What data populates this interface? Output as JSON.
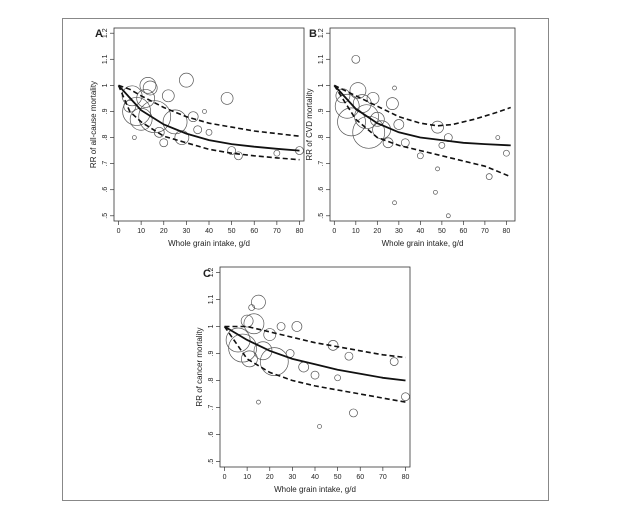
{
  "chart_data": [
    {
      "type": "scatter",
      "panel": "A",
      "xlabel": "Whole grain intake, g/d",
      "ylabel": "RR of all-cause mortality",
      "xlim": [
        0,
        80
      ],
      "ylim": [
        0.5,
        1.2
      ],
      "xticks": [
        0,
        10,
        20,
        30,
        40,
        50,
        60,
        70,
        80
      ],
      "yticks": [
        0.5,
        0.6,
        0.7,
        0.8,
        0.9,
        1.0,
        1.1,
        1.2
      ],
      "ytick_labels": [
        ".5",
        ".6",
        ".7",
        ".8",
        ".9",
        "1",
        "1.1",
        "1.2"
      ],
      "curve": {
        "x": [
          0,
          10,
          20,
          30,
          40,
          50,
          60,
          70,
          80
        ],
        "y": [
          1.0,
          0.905,
          0.85,
          0.815,
          0.79,
          0.775,
          0.765,
          0.757,
          0.75
        ]
      },
      "ci_upper": {
        "x": [
          0,
          5,
          10,
          20,
          30,
          40,
          50,
          60,
          70,
          80
        ],
        "y": [
          1.0,
          0.985,
          0.96,
          0.915,
          0.88,
          0.855,
          0.84,
          0.825,
          0.815,
          0.805
        ]
      },
      "ci_lower": {
        "x": [
          0,
          5,
          10,
          20,
          30,
          40,
          50,
          60,
          70,
          80
        ],
        "y": [
          1.0,
          0.9,
          0.86,
          0.805,
          0.78,
          0.755,
          0.74,
          0.73,
          0.722,
          0.715
        ]
      },
      "points": [
        {
          "x": 5,
          "y": 0.92,
          "r": 6
        },
        {
          "x": 6,
          "y": 0.96,
          "r": 10
        },
        {
          "x": 8,
          "y": 0.9,
          "r": 14
        },
        {
          "x": 10,
          "y": 0.87,
          "r": 11
        },
        {
          "x": 12,
          "y": 0.95,
          "r": 9
        },
        {
          "x": 13,
          "y": 1.0,
          "r": 8
        },
        {
          "x": 14,
          "y": 0.99,
          "r": 7
        },
        {
          "x": 16,
          "y": 0.88,
          "r": 16
        },
        {
          "x": 18,
          "y": 0.82,
          "r": 5
        },
        {
          "x": 20,
          "y": 0.78,
          "r": 4
        },
        {
          "x": 22,
          "y": 0.96,
          "r": 6
        },
        {
          "x": 25,
          "y": 0.86,
          "r": 12
        },
        {
          "x": 28,
          "y": 0.8,
          "r": 7
        },
        {
          "x": 30,
          "y": 1.02,
          "r": 7
        },
        {
          "x": 33,
          "y": 0.88,
          "r": 5
        },
        {
          "x": 35,
          "y": 0.83,
          "r": 4
        },
        {
          "x": 40,
          "y": 0.82,
          "r": 3
        },
        {
          "x": 48,
          "y": 0.95,
          "r": 6
        },
        {
          "x": 50,
          "y": 0.75,
          "r": 4
        },
        {
          "x": 53,
          "y": 0.73,
          "r": 4
        },
        {
          "x": 70,
          "y": 0.74,
          "r": 3
        },
        {
          "x": 80,
          "y": 0.75,
          "r": 4
        },
        {
          "x": 7,
          "y": 0.8,
          "r": 2
        },
        {
          "x": 38,
          "y": 0.9,
          "r": 2
        }
      ]
    },
    {
      "type": "scatter",
      "panel": "B",
      "xlabel": "Whole grain intake, g/d",
      "ylabel": "RR of CVD mortality",
      "xlim": [
        0,
        80
      ],
      "ylim": [
        0.5,
        1.2
      ],
      "xticks": [
        0,
        10,
        20,
        30,
        40,
        50,
        60,
        70,
        80
      ],
      "yticks": [
        0.5,
        0.6,
        0.7,
        0.8,
        0.9,
        1.0,
        1.1,
        1.2
      ],
      "ytick_labels": [
        ".5",
        ".6",
        ".7",
        ".8",
        ".9",
        "1",
        "1.1",
        "1.2"
      ],
      "curve": {
        "x": [
          0,
          10,
          20,
          30,
          40,
          50,
          60,
          70,
          82
        ],
        "y": [
          1.0,
          0.91,
          0.855,
          0.82,
          0.8,
          0.79,
          0.78,
          0.775,
          0.77
        ]
      },
      "ci_upper": {
        "x": [
          0,
          10,
          20,
          30,
          40,
          48,
          55,
          65,
          75,
          82
        ],
        "y": [
          1.0,
          0.96,
          0.92,
          0.88,
          0.855,
          0.845,
          0.85,
          0.87,
          0.895,
          0.915
        ]
      },
      "ci_lower": {
        "x": [
          0,
          10,
          20,
          30,
          40,
          50,
          60,
          70,
          82
        ],
        "y": [
          1.0,
          0.87,
          0.8,
          0.77,
          0.75,
          0.73,
          0.71,
          0.69,
          0.65
        ]
      },
      "points": [
        {
          "x": 4,
          "y": 0.96,
          "r": 7
        },
        {
          "x": 6,
          "y": 0.92,
          "r": 12
        },
        {
          "x": 8,
          "y": 0.86,
          "r": 14
        },
        {
          "x": 10,
          "y": 1.1,
          "r": 4
        },
        {
          "x": 11,
          "y": 0.98,
          "r": 8
        },
        {
          "x": 13,
          "y": 0.93,
          "r": 9
        },
        {
          "x": 15,
          "y": 0.88,
          "r": 12
        },
        {
          "x": 16,
          "y": 0.82,
          "r": 16
        },
        {
          "x": 18,
          "y": 0.95,
          "r": 6
        },
        {
          "x": 20,
          "y": 0.87,
          "r": 7
        },
        {
          "x": 22,
          "y": 0.83,
          "r": 9
        },
        {
          "x": 25,
          "y": 0.78,
          "r": 5
        },
        {
          "x": 27,
          "y": 0.93,
          "r": 6
        },
        {
          "x": 28,
          "y": 0.99,
          "r": 2
        },
        {
          "x": 30,
          "y": 0.85,
          "r": 5
        },
        {
          "x": 33,
          "y": 0.78,
          "r": 4
        },
        {
          "x": 40,
          "y": 0.73,
          "r": 3
        },
        {
          "x": 48,
          "y": 0.84,
          "r": 6
        },
        {
          "x": 50,
          "y": 0.77,
          "r": 3
        },
        {
          "x": 53,
          "y": 0.8,
          "r": 4
        },
        {
          "x": 28,
          "y": 0.55,
          "r": 2
        },
        {
          "x": 53,
          "y": 0.5,
          "r": 2
        },
        {
          "x": 47,
          "y": 0.59,
          "r": 2
        },
        {
          "x": 48,
          "y": 0.68,
          "r": 2
        },
        {
          "x": 72,
          "y": 0.65,
          "r": 3
        },
        {
          "x": 76,
          "y": 0.8,
          "r": 2
        },
        {
          "x": 80,
          "y": 0.74,
          "r": 3
        }
      ]
    },
    {
      "type": "scatter",
      "panel": "C",
      "xlabel": "Whole grain intake, g/d",
      "ylabel": "RR of cancer mortality",
      "xlim": [
        0,
        80
      ],
      "ylim": [
        0.5,
        1.2
      ],
      "xticks": [
        0,
        10,
        20,
        30,
        40,
        50,
        60,
        70,
        80
      ],
      "yticks": [
        0.5,
        0.6,
        0.7,
        0.8,
        0.9,
        1.0,
        1.1,
        1.2
      ],
      "ytick_labels": [
        ".5",
        ".6",
        ".7",
        ".8",
        ".9",
        "1",
        "1.1",
        "1.2"
      ],
      "curve": {
        "x": [
          0,
          10,
          20,
          30,
          40,
          50,
          60,
          70,
          80
        ],
        "y": [
          1.0,
          0.95,
          0.91,
          0.88,
          0.86,
          0.84,
          0.825,
          0.81,
          0.8
        ]
      },
      "ci_upper": {
        "x": [
          0,
          10,
          20,
          30,
          40,
          50,
          60,
          70,
          80
        ],
        "y": [
          1.0,
          1.0,
          0.98,
          0.96,
          0.94,
          0.925,
          0.91,
          0.895,
          0.885
        ]
      },
      "ci_lower": {
        "x": [
          0,
          5,
          10,
          20,
          30,
          40,
          50,
          60,
          70,
          80
        ],
        "y": [
          1.0,
          0.94,
          0.88,
          0.83,
          0.8,
          0.78,
          0.765,
          0.75,
          0.735,
          0.72
        ]
      },
      "points": [
        {
          "x": 6,
          "y": 0.95,
          "r": 12
        },
        {
          "x": 8,
          "y": 0.92,
          "r": 14
        },
        {
          "x": 10,
          "y": 1.02,
          "r": 6
        },
        {
          "x": 11,
          "y": 0.88,
          "r": 8
        },
        {
          "x": 13,
          "y": 1.01,
          "r": 10
        },
        {
          "x": 15,
          "y": 1.09,
          "r": 7
        },
        {
          "x": 17,
          "y": 0.91,
          "r": 9
        },
        {
          "x": 20,
          "y": 0.97,
          "r": 6
        },
        {
          "x": 22,
          "y": 0.87,
          "r": 14
        },
        {
          "x": 25,
          "y": 1.0,
          "r": 4
        },
        {
          "x": 29,
          "y": 0.9,
          "r": 4
        },
        {
          "x": 32,
          "y": 1.0,
          "r": 5
        },
        {
          "x": 35,
          "y": 0.85,
          "r": 5
        },
        {
          "x": 40,
          "y": 0.82,
          "r": 4
        },
        {
          "x": 48,
          "y": 0.93,
          "r": 5
        },
        {
          "x": 50,
          "y": 0.81,
          "r": 3
        },
        {
          "x": 55,
          "y": 0.89,
          "r": 4
        },
        {
          "x": 57,
          "y": 0.68,
          "r": 4
        },
        {
          "x": 75,
          "y": 0.87,
          "r": 4
        },
        {
          "x": 80,
          "y": 0.74,
          "r": 4
        },
        {
          "x": 15,
          "y": 0.72,
          "r": 2
        },
        {
          "x": 42,
          "y": 0.63,
          "r": 2
        },
        {
          "x": 12,
          "y": 1.07,
          "r": 3
        }
      ]
    }
  ],
  "panels": [
    {
      "letter": "A"
    },
    {
      "letter": "B"
    },
    {
      "letter": "C"
    }
  ]
}
